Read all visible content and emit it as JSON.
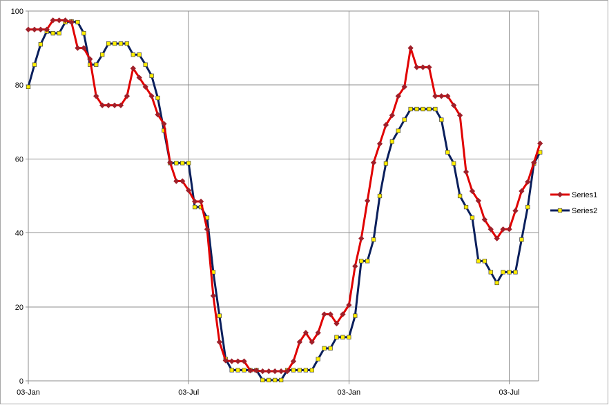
{
  "chart_data": {
    "type": "line",
    "title": "",
    "xlabel": "",
    "ylabel": "",
    "ylim": [
      0,
      100
    ],
    "yticks": [
      0,
      20,
      40,
      60,
      80,
      100
    ],
    "xticks": [
      "03-Jan",
      "03-Jul",
      "03-Jan",
      "03-Jul"
    ],
    "x_tick_index": [
      0,
      26,
      52,
      78
    ],
    "x_count": 84,
    "grid": true,
    "legend_position": "right",
    "colors": {
      "Series1": "#e00000",
      "Series2": "#0a1f5c",
      "Series1_marker": "#a0202a",
      "Series2_marker": "#ffee00"
    },
    "series": [
      {
        "name": "Series1",
        "values": [
          95,
          95,
          95,
          95,
          97.5,
          97.5,
          97.5,
          97,
          90,
          90,
          87,
          77,
          74.5,
          74.5,
          74.5,
          74.5,
          77,
          84.5,
          82,
          79.5,
          77,
          72,
          69.5,
          59,
          54,
          54,
          51.5,
          48.5,
          48.5,
          41,
          23,
          10.5,
          5.5,
          5.3,
          5.3,
          5.3,
          2.8,
          2.8,
          2.6,
          2.6,
          2.6,
          2.6,
          2.6,
          5.3,
          10.5,
          13,
          10.5,
          13,
          18,
          18,
          15.5,
          18,
          20.5,
          31,
          38.5,
          48.7,
          59,
          64.1,
          69.2,
          71.8,
          77,
          79.5,
          90,
          84.8,
          84.8,
          84.8,
          77,
          77,
          77,
          74.5,
          71.8,
          56.5,
          51.3,
          48.7,
          43.6,
          41,
          38.5,
          41,
          41,
          46,
          51.3,
          53.8,
          59,
          64.2
        ]
      },
      {
        "name": "Series2",
        "values": [
          79.5,
          85.5,
          91,
          94.5,
          94,
          94,
          97,
          97.2,
          97,
          94,
          85.5,
          85.5,
          88.2,
          91.2,
          91.2,
          91.2,
          91.2,
          88.2,
          88.2,
          85.5,
          82.5,
          76.5,
          67.7,
          58.9,
          58.9,
          58.9,
          58.9,
          47,
          47,
          44.1,
          29.4,
          17.6,
          5.9,
          2.9,
          2.9,
          2.9,
          2.9,
          2.9,
          0.2,
          0.2,
          0.2,
          0.2,
          2.9,
          2.9,
          2.9,
          2.9,
          2.9,
          5.9,
          8.8,
          8.8,
          11.8,
          11.8,
          11.8,
          17.6,
          32.4,
          32.4,
          38.2,
          50,
          58.8,
          64.7,
          67.6,
          70.6,
          73.5,
          73.5,
          73.5,
          73.5,
          73.5,
          70.6,
          61.8,
          58.8,
          50,
          47,
          44.1,
          32.4,
          32.4,
          29.4,
          26.5,
          29.4,
          29.4,
          29.4,
          38.2,
          47,
          58.8,
          61.8
        ]
      }
    ]
  }
}
